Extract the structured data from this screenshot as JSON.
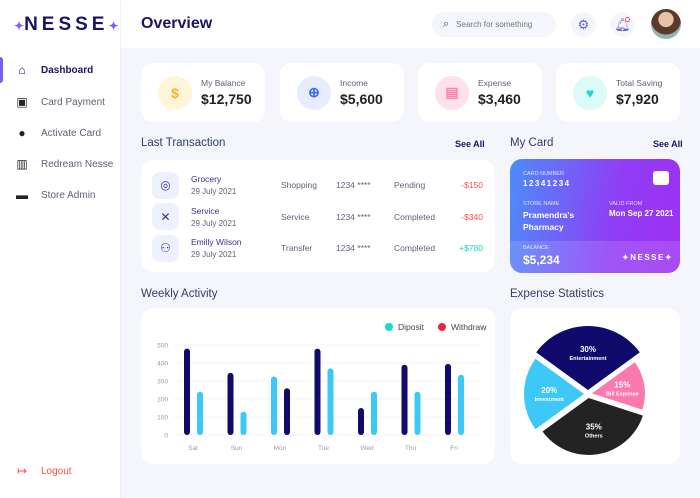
{
  "brand": "NESSE",
  "sidebar": {
    "items": [
      {
        "label": "Dashboard",
        "icon": "home-icon",
        "active": true
      },
      {
        "label": "Card Payment",
        "icon": "card-payment-icon"
      },
      {
        "label": "Activate Card",
        "icon": "user-icon"
      },
      {
        "label": "Redream Nesse",
        "icon": "redeem-icon"
      },
      {
        "label": "Store Admin",
        "icon": "store-icon"
      }
    ],
    "logout": "Logout"
  },
  "header": {
    "title": "Overview",
    "search_placeholder": "Search for something"
  },
  "stats": [
    {
      "label": "My Balance",
      "value": "$12,750",
      "icon": "money-bag-icon",
      "color": "#ffb020",
      "bg": "#fff5d9"
    },
    {
      "label": "Income",
      "value": "$5,600",
      "icon": "hand-coin-icon",
      "color": "#396aff",
      "bg": "#e7edff"
    },
    {
      "label": "Expense",
      "value": "$3,460",
      "icon": "receipt-icon",
      "color": "#ff82ac",
      "bg": "#ffe0eb"
    },
    {
      "label": "Total Saving",
      "value": "$7,920",
      "icon": "piggy-bank-icon",
      "color": "#16dbcc",
      "bg": "#dcfaf8"
    }
  ],
  "transactions": {
    "title": "Last Transaction",
    "see_all": "See All",
    "rows": [
      {
        "name": "Grocery",
        "date": "29 July 2021",
        "type": "Shopping",
        "card": "1234 ****",
        "status": "Pending",
        "amount": "-$150",
        "positive": false,
        "icon": "grocery-icon"
      },
      {
        "name": "Service",
        "date": "29 July 2021",
        "type": "Service",
        "card": "1234 ****",
        "status": "Completed",
        "amount": "-$340",
        "positive": false,
        "icon": "tools-icon"
      },
      {
        "name": "Emilly Wilson",
        "date": "29 July 2021",
        "type": "Transfer",
        "card": "1234 ****",
        "status": "Completed",
        "amount": "+$780",
        "positive": true,
        "icon": "person-icon"
      }
    ]
  },
  "my_card": {
    "title": "My Card",
    "see_all": "See All",
    "card_number_label": "CARD NUMBER",
    "card_number": "12341234",
    "store_label": "STORE NAME",
    "store": "Pramendra's Pharmacy",
    "valid_label": "VALID FROM",
    "valid": "Mon Sep 27 2021",
    "balance_label": "BALANCE",
    "balance": "$5,234",
    "brand": "NESSE"
  },
  "chart_data": [
    {
      "type": "bar",
      "title": "Weekly Activity",
      "categories": [
        "Sat",
        "Sun",
        "Mon",
        "Tue",
        "Wed",
        "Thu",
        "Fri"
      ],
      "legend": [
        "Diposit",
        "Withdraw"
      ],
      "legend_colors": [
        "#16dbcc",
        "#ff4b4a"
      ],
      "legend_placement": "top-right",
      "series": [
        {
          "color": "#0f0a6b",
          "values": [
            480,
            345,
            260,
            480,
            150,
            390,
            395
          ]
        },
        {
          "color": "#3ec8f8",
          "values": [
            240,
            130,
            325,
            370,
            240,
            240,
            335
          ]
        }
      ],
      "order_swapped": [
        false,
        false,
        true,
        false,
        false,
        false,
        false
      ],
      "yticks": [
        0,
        100,
        200,
        300,
        400,
        500
      ],
      "ylim": [
        0,
        500
      ],
      "grid": true
    },
    {
      "type": "pie",
      "title": "Expense Statistics",
      "slices": [
        {
          "label": "Entertainment",
          "value": 30,
          "color": "#0f0a6b"
        },
        {
          "label": "Bill Expense",
          "value": 15,
          "color": "#fc79b0"
        },
        {
          "label": "Others",
          "value": 35,
          "color": "#232323"
        },
        {
          "label": "Investment",
          "value": 20,
          "color": "#3ec8f8"
        }
      ]
    }
  ]
}
